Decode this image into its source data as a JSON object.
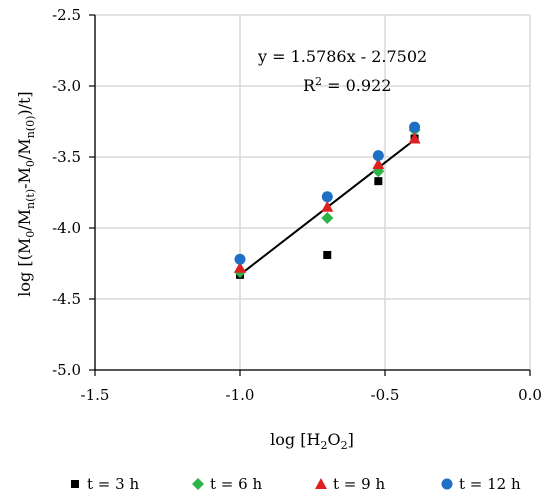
{
  "chart_data": {
    "type": "scatter",
    "xlabel": {
      "main": "log [H",
      "sub": "2",
      "mid": "O",
      "sub2": "2",
      "end": "]"
    },
    "ylabel": {
      "p1": "log [(M",
      "s1": "0",
      "p2": "/M",
      "s2": "n(t)",
      "p3": "-M",
      "s3": "0",
      "p4": "/M",
      "s4": "n(0)",
      "p5": ")/t]"
    },
    "xlim": [
      -1.5,
      0.0
    ],
    "ylim": [
      -5.0,
      -2.5
    ],
    "x_ticks": [
      "-1.5",
      "-1.0",
      "-0.5",
      "0.0"
    ],
    "y_ticks": [
      "-2.5",
      "-3.0",
      "-3.5",
      "-4.0",
      "-4.5",
      "-5.0"
    ],
    "x_tick_values": [
      -1.5,
      -1.0,
      -0.5,
      0.0
    ],
    "y_tick_values": [
      -2.5,
      -3.0,
      -3.5,
      -4.0,
      -4.5,
      -5.0
    ],
    "grid": true,
    "legend_position": "bottom",
    "series": [
      {
        "name": "t = 3 h",
        "marker": "square",
        "color": "#000000",
        "x": [
          -1.0,
          -0.699,
          -0.523,
          -0.398
        ],
        "y": [
          -4.33,
          -4.19,
          -3.67,
          -3.37
        ]
      },
      {
        "name": "t = 6 h",
        "marker": "diamond",
        "color": "#2db34a",
        "x": [
          -1.0,
          -0.699,
          -0.523,
          -0.398
        ],
        "y": [
          -4.31,
          -3.93,
          -3.6,
          -3.31
        ]
      },
      {
        "name": "t = 9 h",
        "marker": "triangle",
        "color": "#e02020",
        "x": [
          -1.0,
          -0.699,
          -0.523,
          -0.398
        ],
        "y": [
          -4.28,
          -3.85,
          -3.55,
          -3.37
        ]
      },
      {
        "name": "t = 12 h",
        "marker": "circle",
        "color": "#1f6fc5",
        "x": [
          -1.0,
          -0.699,
          -0.523,
          -0.398
        ],
        "y": [
          -4.22,
          -3.78,
          -3.49,
          -3.29
        ]
      }
    ],
    "trendline": {
      "slope": 1.5786,
      "intercept": -2.7502,
      "x_range": [
        -1.0,
        -0.398
      ],
      "color": "#000000"
    },
    "annotations": {
      "equation": "y = 1.5786x - 2.7502",
      "r2_prefix": "R",
      "r2_sup": "2",
      "r2_rest": " = 0.922"
    }
  }
}
